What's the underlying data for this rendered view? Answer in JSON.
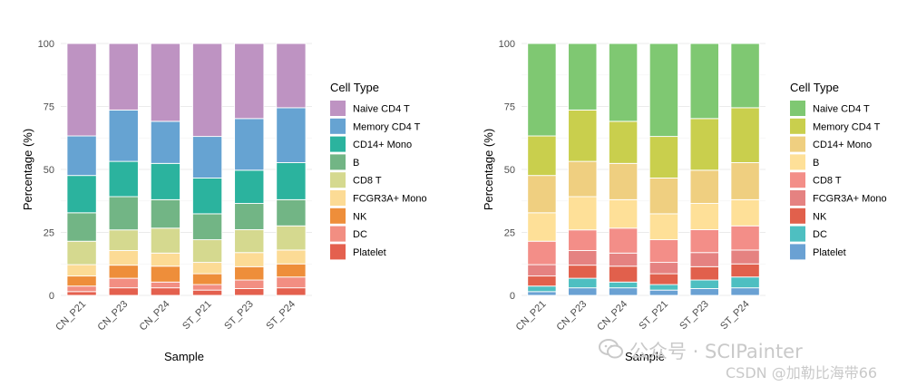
{
  "chart_data": [
    {
      "type": "bar",
      "stacked": true,
      "categories": [
        "CN_P21",
        "CN_P23",
        "CN_P24",
        "ST_P21",
        "ST_P23",
        "ST_P24"
      ],
      "xlabel": "Sample",
      "ylabel": "Percentage (%)",
      "ylim": [
        0,
        100
      ],
      "yticks": [
        0,
        25,
        50,
        75,
        100
      ],
      "grid": true,
      "legend_title": "Cell Type",
      "legend_position": "right",
      "series": [
        {
          "name": "Naive CD4 T",
          "color": "#BE93C2",
          "values": [
            36.7,
            26.4,
            30.9,
            36.9,
            29.8,
            25.5
          ]
        },
        {
          "name": "Memory CD4 T",
          "color": "#66A3D2",
          "values": [
            15.7,
            20.4,
            16.7,
            16.5,
            20.5,
            21.8
          ]
        },
        {
          "name": "CD14+ Mono",
          "color": "#2BB39E",
          "values": [
            14.8,
            14.0,
            14.4,
            14.2,
            13.2,
            14.7
          ]
        },
        {
          "name": "B",
          "color": "#72B585",
          "values": [
            11.3,
            13.2,
            11.3,
            10.3,
            10.4,
            10.4
          ]
        },
        {
          "name": "CD8 T",
          "color": "#D5D98F",
          "values": [
            9.3,
            8.2,
            9.9,
            9.0,
            9.1,
            9.6
          ]
        },
        {
          "name": "FCGR3A+ Mono",
          "color": "#FCDB95",
          "values": [
            4.5,
            5.8,
            5.2,
            4.5,
            5.6,
            5.5
          ]
        },
        {
          "name": "NK",
          "color": "#EE8E3A",
          "values": [
            4.0,
            5.2,
            6.3,
            4.3,
            5.3,
            5.2
          ]
        },
        {
          "name": "DC",
          "color": "#F28E82",
          "values": [
            2.2,
            3.8,
            2.3,
            2.2,
            3.4,
            4.3
          ]
        },
        {
          "name": "Platelet",
          "color": "#E4604E",
          "values": [
            1.5,
            3.0,
            3.0,
            2.1,
            2.7,
            3.0
          ]
        }
      ]
    },
    {
      "type": "bar",
      "stacked": true,
      "categories": [
        "CN_P21",
        "CN_P23",
        "CN_P24",
        "ST_P21",
        "ST_P23",
        "ST_P24"
      ],
      "xlabel": "Sample",
      "ylabel": "Percentage (%)",
      "ylim": [
        0,
        100
      ],
      "yticks": [
        0,
        25,
        50,
        75,
        100
      ],
      "grid": true,
      "legend_title": "Cell Type",
      "legend_position": "right",
      "series": [
        {
          "name": "Naive CD4 T",
          "color": "#7FC872",
          "values": [
            36.7,
            26.4,
            30.9,
            36.9,
            29.8,
            25.5
          ]
        },
        {
          "name": "Memory CD4 T",
          "color": "#C9CF4D",
          "values": [
            15.7,
            20.4,
            16.7,
            16.5,
            20.5,
            21.8
          ]
        },
        {
          "name": "CD14+ Mono",
          "color": "#EFCF80",
          "values": [
            14.8,
            14.0,
            14.4,
            14.2,
            13.2,
            14.7
          ]
        },
        {
          "name": "B",
          "color": "#FEE098",
          "values": [
            11.3,
            13.2,
            11.3,
            10.3,
            10.4,
            10.4
          ]
        },
        {
          "name": "CD8 T",
          "color": "#F38E88",
          "values": [
            9.3,
            8.2,
            9.9,
            9.0,
            9.1,
            9.6
          ]
        },
        {
          "name": "FCGR3A+ Mono",
          "color": "#E58281",
          "values": [
            4.5,
            5.8,
            5.2,
            4.5,
            5.6,
            5.5
          ]
        },
        {
          "name": "NK",
          "color": "#E1604C",
          "values": [
            4.0,
            5.2,
            6.3,
            4.3,
            5.3,
            5.2
          ]
        },
        {
          "name": "DC",
          "color": "#4EBFC1",
          "values": [
            2.2,
            3.8,
            2.3,
            2.2,
            3.4,
            4.3
          ]
        },
        {
          "name": "Platelet",
          "color": "#6AA1D3",
          "values": [
            1.5,
            3.0,
            3.0,
            2.1,
            2.7,
            3.0
          ]
        }
      ]
    }
  ],
  "watermark": {
    "line1": "公众号 · SCIPainter",
    "line2": "CSDN @加勒比海带66"
  }
}
